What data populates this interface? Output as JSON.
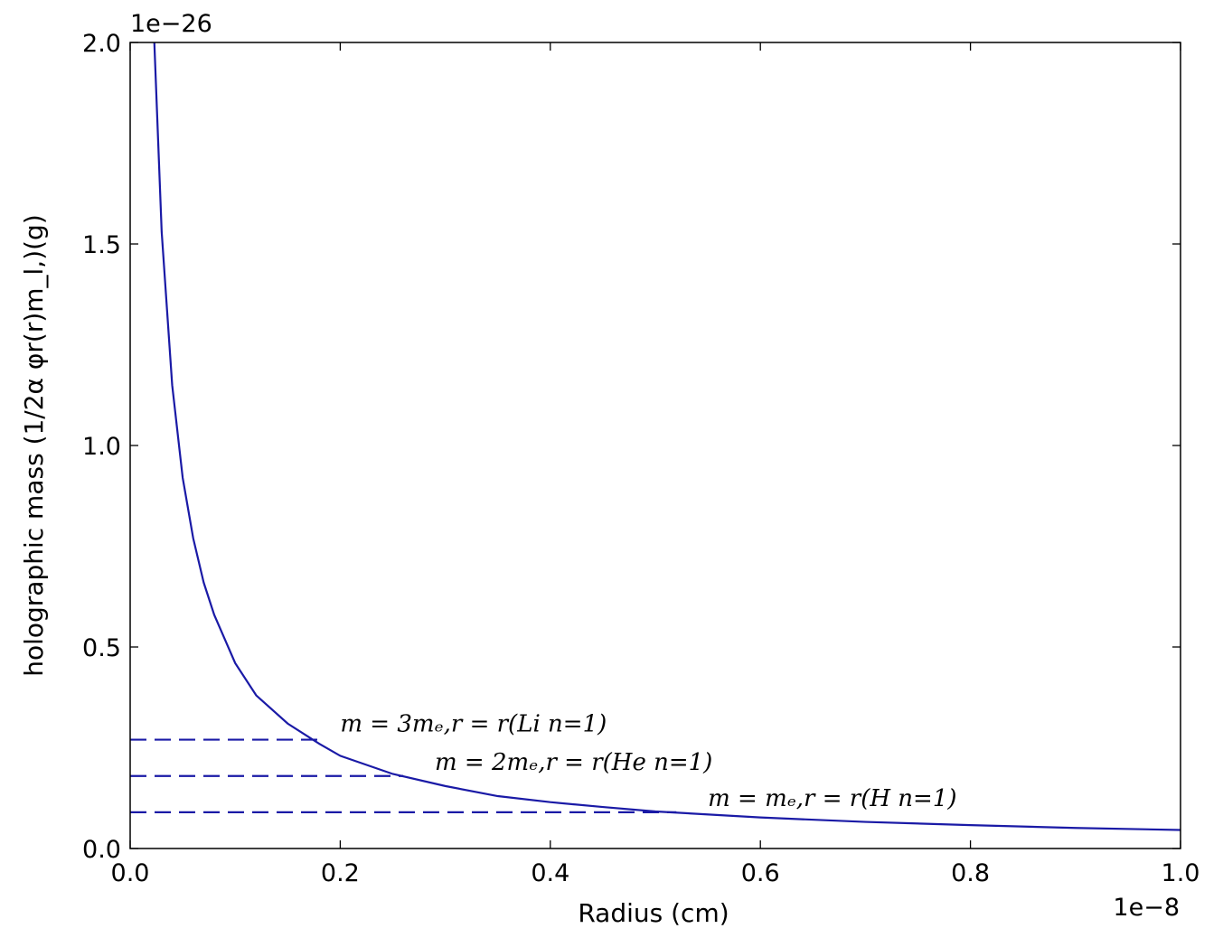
{
  "chart_data": {
    "type": "line",
    "xlabel": "Radius (cm)",
    "ylabel": "holographic mass (1/2α φr(r)m_l,)(g)",
    "x_offset_text": "1e−8",
    "y_offset_text": "1e−26",
    "x_scale": 1e-08,
    "y_scale": 1e-26,
    "xlim": [
      0.0,
      1.0
    ],
    "ylim": [
      0.0,
      2.0
    ],
    "x_ticks": [
      "0.0",
      "0.2",
      "0.4",
      "0.6",
      "0.8",
      "1.0"
    ],
    "y_ticks": [
      "0.0",
      "0.5",
      "1.0",
      "1.5",
      "2.0"
    ],
    "grid": false,
    "series": [
      {
        "style": "solid",
        "color": "#1a1aa6",
        "x": [
          0.023,
          0.03,
          0.04,
          0.05,
          0.06,
          0.07,
          0.08,
          0.1,
          0.12,
          0.15,
          0.18,
          0.2,
          0.25,
          0.3,
          0.35,
          0.4,
          0.45,
          0.5,
          0.6,
          0.7,
          0.8,
          0.9,
          1.0
        ],
        "y": [
          2.0,
          1.53,
          1.15,
          0.92,
          0.77,
          0.66,
          0.58,
          0.46,
          0.38,
          0.31,
          0.26,
          0.23,
          0.185,
          0.155,
          0.13,
          0.115,
          0.103,
          0.092,
          0.077,
          0.066,
          0.058,
          0.051,
          0.046
        ]
      }
    ],
    "reference_lines": [
      {
        "y": 0.27,
        "x_end": 0.18,
        "color": "#1a1aa6",
        "style": "dashed"
      },
      {
        "y": 0.18,
        "x_end": 0.26,
        "color": "#1a1aa6",
        "style": "dashed"
      },
      {
        "y": 0.09,
        "x_end": 0.52,
        "color": "#1a1aa6",
        "style": "dashed"
      }
    ],
    "annotations": [
      {
        "text": "m = 3mₑ,r = r(Li n=1)",
        "x": 0.2,
        "y": 0.29
      },
      {
        "text": "m = 2mₑ,r = r(He n=1)",
        "x": 0.29,
        "y": 0.195
      },
      {
        "text": "m = mₑ,r = r(H n=1)",
        "x": 0.55,
        "y": 0.105
      }
    ]
  }
}
